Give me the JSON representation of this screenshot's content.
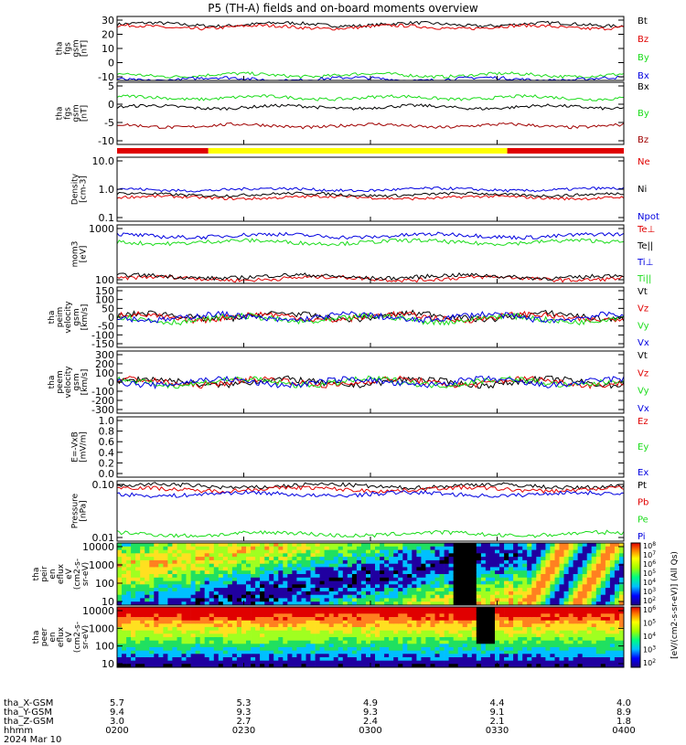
{
  "title": "P5 (TH-A) fields and on-board moments overview",
  "colors": {
    "black": "#000000",
    "red": "#e00000",
    "green": "#1adc1a",
    "blue": "#0000e0",
    "darkred": "#a00000",
    "yellow": "#ffff00"
  },
  "time_ticks": [
    "0200",
    "0230",
    "0300",
    "0330",
    "0400"
  ],
  "ephemeris": {
    "labels": [
      "tha_X-GSM",
      "tha_Y-GSM",
      "tha_Z-GSM",
      "hhmm",
      "2024 Mar 10"
    ],
    "x": [
      "5.7",
      "5.3",
      "4.9",
      "4.4",
      "4.0"
    ],
    "y": [
      "9.4",
      "9.3",
      "9.3",
      "9.1",
      "8.9"
    ],
    "z": [
      "3.0",
      "2.7",
      "2.4",
      "2.1",
      "1.8"
    ],
    "hhmm": [
      "0200",
      "0230",
      "0300",
      "0330",
      "0400"
    ]
  },
  "colorbar": {
    "label": "[eV/(cm^2-s-sr-eV)] (All Qs)",
    "ticks_top": [
      "10^8",
      "10^7",
      "10^6",
      "10^5",
      "10^4",
      "10^3",
      "10^2"
    ],
    "ticks_bottom": [
      "10^6",
      "10^5",
      "10^4",
      "10^3",
      "10^2"
    ]
  },
  "chart_data": [
    {
      "type": "line",
      "panel": "fgs-mag",
      "ylabel": [
        "tha",
        "fgs",
        "gsm",
        "[nT]"
      ],
      "yticks": [
        "30",
        "20",
        "10",
        "0",
        "-10"
      ],
      "ylim": [
        -12,
        36
      ],
      "series": [
        {
          "name": "Bt",
          "color": "#000000",
          "level": 30
        },
        {
          "name": "Bz",
          "color": "#e00000",
          "level": 28
        },
        {
          "name": "By",
          "color": "#1adc1a",
          "level": -8
        },
        {
          "name": "Bx",
          "color": "#0000e0",
          "level": -11
        }
      ]
    },
    {
      "type": "line",
      "panel": "fgs-dsl",
      "ylabel": [
        "tha",
        "fgs",
        "gsm",
        "[nT]"
      ],
      "yticks": [
        "5",
        "0",
        "-5",
        "-10"
      ],
      "ylim": [
        -14,
        6
      ],
      "series": [
        {
          "name": "Bx",
          "color": "#000000",
          "level": -2
        },
        {
          "name": "By",
          "color": "#1adc1a",
          "level": 1
        },
        {
          "name": "Bz",
          "color": "#a00000",
          "level": -8
        }
      ]
    },
    {
      "type": "bar",
      "panel": "mode-bar",
      "segments": [
        {
          "from": 0,
          "to": 0.18,
          "color": "#e00000"
        },
        {
          "from": 0.18,
          "to": 0.77,
          "color": "#ffff00"
        },
        {
          "from": 0.77,
          "to": 1,
          "color": "#e00000"
        }
      ]
    },
    {
      "type": "line",
      "panel": "density",
      "ylabel": [
        "Density",
        "[cm-3]"
      ],
      "yticks": [
        "10.0",
        "1.0",
        "0.1"
      ],
      "log": true,
      "ylim": [
        0.06,
        30
      ],
      "series": [
        {
          "name": "Ne",
          "color": "#e00000",
          "level": 0.6
        },
        {
          "name": "Ni",
          "color": "#000000",
          "level": 0.8
        },
        {
          "name": "Npot",
          "color": "#0000e0",
          "level": 1.3
        }
      ]
    },
    {
      "type": "line",
      "panel": "temperature",
      "ylabel": [
        "mom3",
        "[eV]"
      ],
      "yticks": [
        "1000",
        "100"
      ],
      "log": true,
      "ylim": [
        50,
        3000
      ],
      "series": [
        {
          "name": "Te⊥",
          "color": "#e00000",
          "level": 70
        },
        {
          "name": "Te||",
          "color": "#000000",
          "level": 80
        },
        {
          "name": "Ti⊥",
          "color": "#0000e0",
          "level": 1400
        },
        {
          "name": "Ti||",
          "color": "#1adc1a",
          "level": 900
        }
      ]
    },
    {
      "type": "line",
      "panel": "ion-velocity",
      "ylabel": [
        "tha",
        "peim",
        "velocity",
        "gsm",
        "[km/s]"
      ],
      "yticks": [
        "150",
        "100",
        "50",
        "0",
        "-50",
        "-100",
        "-150"
      ],
      "ylim": [
        -170,
        160
      ],
      "series": [
        {
          "name": "Vt",
          "color": "#000000",
          "level": 0
        },
        {
          "name": "Vz",
          "color": "#e00000",
          "level": -5
        },
        {
          "name": "Vy",
          "color": "#1adc1a",
          "level": -15
        },
        {
          "name": "Vx",
          "color": "#0000e0",
          "level": -5
        }
      ]
    },
    {
      "type": "line",
      "panel": "electron-velocity",
      "ylabel": [
        "tha",
        "peem",
        "velocity",
        "gsm",
        "[km/s]"
      ],
      "yticks": [
        "300",
        "200",
        "100",
        "0",
        "-100",
        "-200",
        "-300"
      ],
      "ylim": [
        -320,
        320
      ],
      "series": [
        {
          "name": "Vt",
          "color": "#000000",
          "level": 0
        },
        {
          "name": "Vz",
          "color": "#e00000",
          "level": 0
        },
        {
          "name": "Vy",
          "color": "#1adc1a",
          "level": 0
        },
        {
          "name": "Vx",
          "color": "#0000e0",
          "level": 0
        }
      ]
    },
    {
      "type": "line",
      "panel": "e-field",
      "ylabel": [
        "E=-VxB",
        "[mV/m]"
      ],
      "yticks": [
        "1.0",
        "0.8",
        "0.6",
        "0.4",
        "0.2",
        "0.0"
      ],
      "ylim": [
        -0.05,
        1.0
      ],
      "series": [
        {
          "name": "Ez",
          "color": "#e00000"
        },
        {
          "name": "Ey",
          "color": "#1adc1a"
        },
        {
          "name": "Ex",
          "color": "#0000e0"
        }
      ]
    },
    {
      "type": "line",
      "panel": "pressure",
      "ylabel": [
        "Pressure",
        "[nPa]"
      ],
      "yticks": [
        "0.10",
        "0.01"
      ],
      "log": true,
      "ylim": [
        0.008,
        0.5
      ],
      "series": [
        {
          "name": "Pt",
          "color": "#000000",
          "level": 0.35
        },
        {
          "name": "Pb",
          "color": "#e00000",
          "level": 0.28
        },
        {
          "name": "Pe",
          "color": "#1adc1a",
          "level": 0.013
        },
        {
          "name": "Pi",
          "color": "#0000e0",
          "level": 0.2
        }
      ]
    },
    {
      "type": "heatmap",
      "panel": "ion-spectrogram",
      "ylabel": [
        "tha",
        "peir",
        "en",
        "eflux",
        "eV",
        "(cm^2-s-",
        "sr-eV)"
      ],
      "yticks": [
        "10000",
        "1000",
        "100",
        "10"
      ]
    },
    {
      "type": "heatmap",
      "panel": "electron-spectrogram",
      "ylabel": [
        "tha",
        "peer",
        "en",
        "eflux",
        "eV",
        "(cm^2-s-",
        "sr-eV)"
      ],
      "yticks": [
        "10000",
        "1000",
        "100",
        "10"
      ]
    }
  ]
}
